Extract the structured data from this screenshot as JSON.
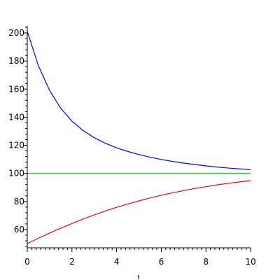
{
  "chart_data": {
    "type": "line",
    "title": "",
    "xlabel": "t",
    "ylabel": "",
    "xlim": [
      0,
      10
    ],
    "ylim": [
      47,
      205
    ],
    "grid": false,
    "x_ticks": [
      0,
      2,
      4,
      6,
      8,
      10
    ],
    "y_ticks": [
      60,
      80,
      100,
      120,
      140,
      160,
      180,
      200
    ],
    "series": [
      {
        "color": "#0000ff",
        "x": [
          0,
          0.5,
          1,
          1.5,
          2,
          2.5,
          3,
          3.5,
          4,
          4.5,
          5,
          5.5,
          6,
          6.5,
          7,
          7.5,
          8,
          8.5,
          9,
          9.5,
          10
        ],
        "y": [
          201,
          176.5,
          159,
          146.3,
          137.2,
          130.5,
          125.4,
          121.4,
          118.2,
          115.6,
          113.4,
          111.5,
          109.9,
          108.5,
          107.3,
          106.3,
          105.3,
          104.5,
          103.8,
          103.2,
          102.6
        ]
      },
      {
        "color": "#00cc00",
        "x": [
          0,
          10
        ],
        "y": [
          100,
          100
        ]
      },
      {
        "color": "#ff0000",
        "x": [
          0,
          0.5,
          1,
          1.5,
          2,
          2.5,
          3,
          3.5,
          4,
          4.5,
          5,
          5.5,
          6,
          6.5,
          7,
          7.5,
          8,
          8.5,
          9,
          9.5,
          10
        ],
        "y": [
          50,
          53.8,
          57.5,
          61,
          64.3,
          67.5,
          70.4,
          73.2,
          75.8,
          78.2,
          80.4,
          82.5,
          84.4,
          86.1,
          87.7,
          89.2,
          90.5,
          91.8,
          92.9,
          93.9,
          94.8
        ]
      }
    ]
  }
}
